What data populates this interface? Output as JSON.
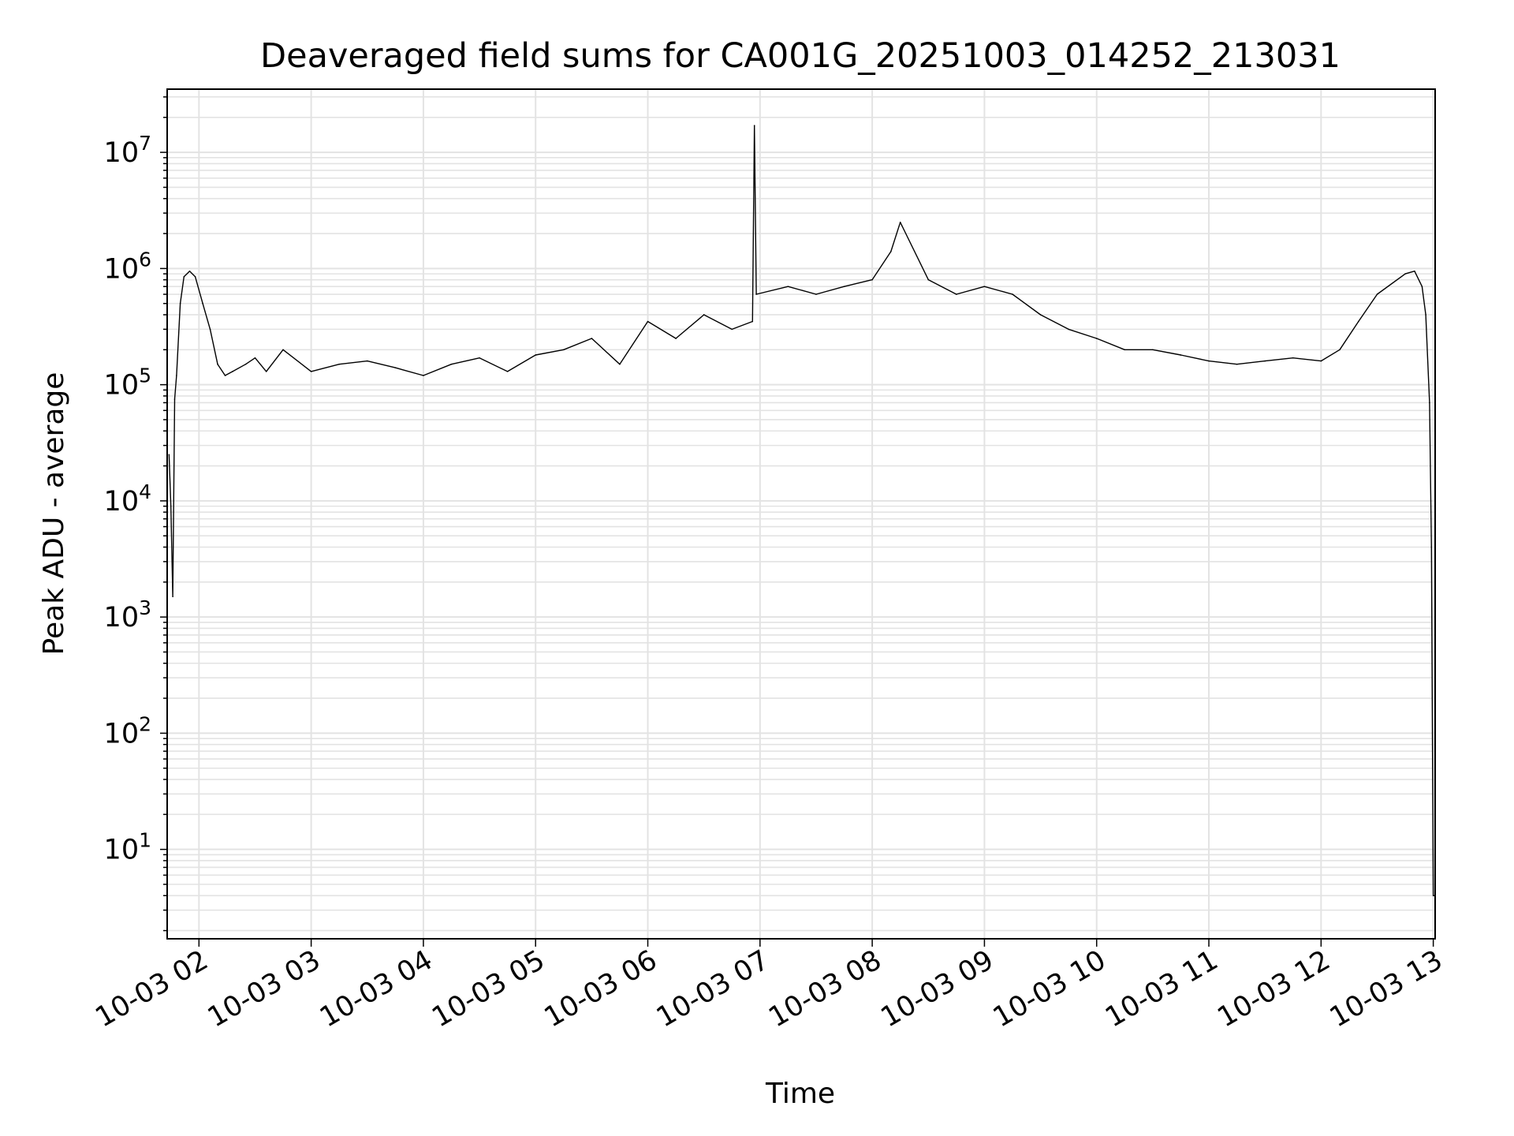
{
  "chart_data": {
    "type": "line",
    "title": "Deaveraged field sums for CA001G_20251003_014252_213031",
    "xlabel": "Time",
    "ylabel": "Peak ADU - average",
    "y_scale": "log",
    "ylim": [
      1.7,
      35000000
    ],
    "xlim": [
      "2025-10-03 01:43",
      "2025-10-03 13:01"
    ],
    "grid": true,
    "line_color": "#000000",
    "x_ticks": [
      {
        "value": "2025-10-03 02:00",
        "label": "10-03 02"
      },
      {
        "value": "2025-10-03 03:00",
        "label": "10-03 03"
      },
      {
        "value": "2025-10-03 04:00",
        "label": "10-03 04"
      },
      {
        "value": "2025-10-03 05:00",
        "label": "10-03 05"
      },
      {
        "value": "2025-10-03 06:00",
        "label": "10-03 06"
      },
      {
        "value": "2025-10-03 07:00",
        "label": "10-03 07"
      },
      {
        "value": "2025-10-03 08:00",
        "label": "10-03 08"
      },
      {
        "value": "2025-10-03 09:00",
        "label": "10-03 09"
      },
      {
        "value": "2025-10-03 10:00",
        "label": "10-03 10"
      },
      {
        "value": "2025-10-03 11:00",
        "label": "10-03 11"
      },
      {
        "value": "2025-10-03 12:00",
        "label": "10-03 12"
      },
      {
        "value": "2025-10-03 13:00",
        "label": "10-03 13"
      }
    ],
    "y_ticks": [
      {
        "value": 10,
        "base": "10",
        "exp": "1"
      },
      {
        "value": 100,
        "base": "10",
        "exp": "2"
      },
      {
        "value": 1000,
        "base": "10",
        "exp": "3"
      },
      {
        "value": 10000,
        "base": "10",
        "exp": "4"
      },
      {
        "value": 100000,
        "base": "10",
        "exp": "5"
      },
      {
        "value": 1000000,
        "base": "10",
        "exp": "6"
      },
      {
        "value": 10000000,
        "base": "10",
        "exp": "7"
      }
    ],
    "series": [
      {
        "x": [
          "2025-10-03 01:44",
          "2025-10-03 01:45",
          "2025-10-03 01:46",
          "2025-10-03 01:47",
          "2025-10-03 01:48",
          "2025-10-03 01:50",
          "2025-10-03 01:52",
          "2025-10-03 01:55",
          "2025-10-03 01:58",
          "2025-10-03 02:02",
          "2025-10-03 02:06",
          "2025-10-03 02:10",
          "2025-10-03 02:14",
          "2025-10-03 02:18",
          "2025-10-03 02:25",
          "2025-10-03 02:30",
          "2025-10-03 02:36",
          "2025-10-03 02:45",
          "2025-10-03 03:00",
          "2025-10-03 03:15",
          "2025-10-03 03:30",
          "2025-10-03 03:45",
          "2025-10-03 04:00",
          "2025-10-03 04:15",
          "2025-10-03 04:30",
          "2025-10-03 04:45",
          "2025-10-03 05:00",
          "2025-10-03 05:15",
          "2025-10-03 05:30",
          "2025-10-03 05:45",
          "2025-10-03 06:00",
          "2025-10-03 06:15",
          "2025-10-03 06:30",
          "2025-10-03 06:45",
          "2025-10-03 06:56",
          "2025-10-03 06:57",
          "2025-10-03 06:58",
          "2025-10-03 07:15",
          "2025-10-03 07:30",
          "2025-10-03 07:45",
          "2025-10-03 08:00",
          "2025-10-03 08:10",
          "2025-10-03 08:15",
          "2025-10-03 08:30",
          "2025-10-03 08:45",
          "2025-10-03 09:00",
          "2025-10-03 09:15",
          "2025-10-03 09:30",
          "2025-10-03 09:45",
          "2025-10-03 10:00",
          "2025-10-03 10:15",
          "2025-10-03 10:30",
          "2025-10-03 10:45",
          "2025-10-03 11:00",
          "2025-10-03 11:15",
          "2025-10-03 11:30",
          "2025-10-03 11:45",
          "2025-10-03 12:00",
          "2025-10-03 12:10",
          "2025-10-03 12:20",
          "2025-10-03 12:30",
          "2025-10-03 12:45",
          "2025-10-03 12:50",
          "2025-10-03 12:54",
          "2025-10-03 12:56",
          "2025-10-03 12:58",
          "2025-10-03 12:59",
          "2025-10-03 13:00",
          "2025-10-03 13:01"
        ],
        "y": [
          25000,
          9000,
          1500,
          75000,
          120000,
          500000,
          850000,
          950000,
          850000,
          500000,
          300000,
          150000,
          120000,
          130000,
          150000,
          170000,
          130000,
          200000,
          130000,
          150000,
          160000,
          140000,
          120000,
          150000,
          170000,
          130000,
          180000,
          200000,
          250000,
          150000,
          350000,
          250000,
          400000,
          300000,
          350000,
          17000000,
          600000,
          700000,
          600000,
          700000,
          800000,
          1400000,
          2500000,
          800000,
          600000,
          700000,
          600000,
          400000,
          300000,
          250000,
          200000,
          200000,
          180000,
          160000,
          150000,
          160000,
          170000,
          160000,
          200000,
          350000,
          600000,
          900000,
          950000,
          700000,
          400000,
          70000,
          4000,
          4,
          4
        ]
      }
    ]
  }
}
